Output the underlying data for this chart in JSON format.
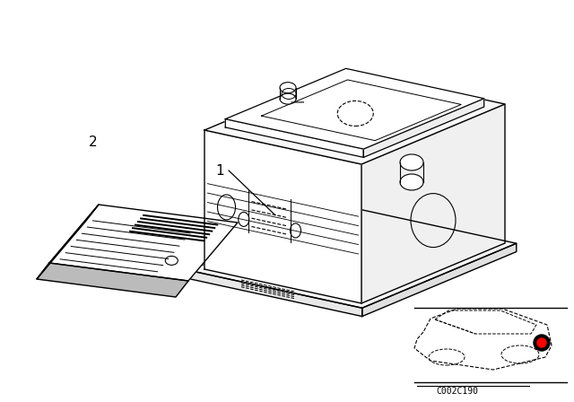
{
  "background_color": "#ffffff",
  "line_color": "#000000",
  "fig_width": 6.4,
  "fig_height": 4.48,
  "dpi": 100,
  "label_1_text": "1",
  "label_2_text": "2",
  "part_number": "C002C190"
}
